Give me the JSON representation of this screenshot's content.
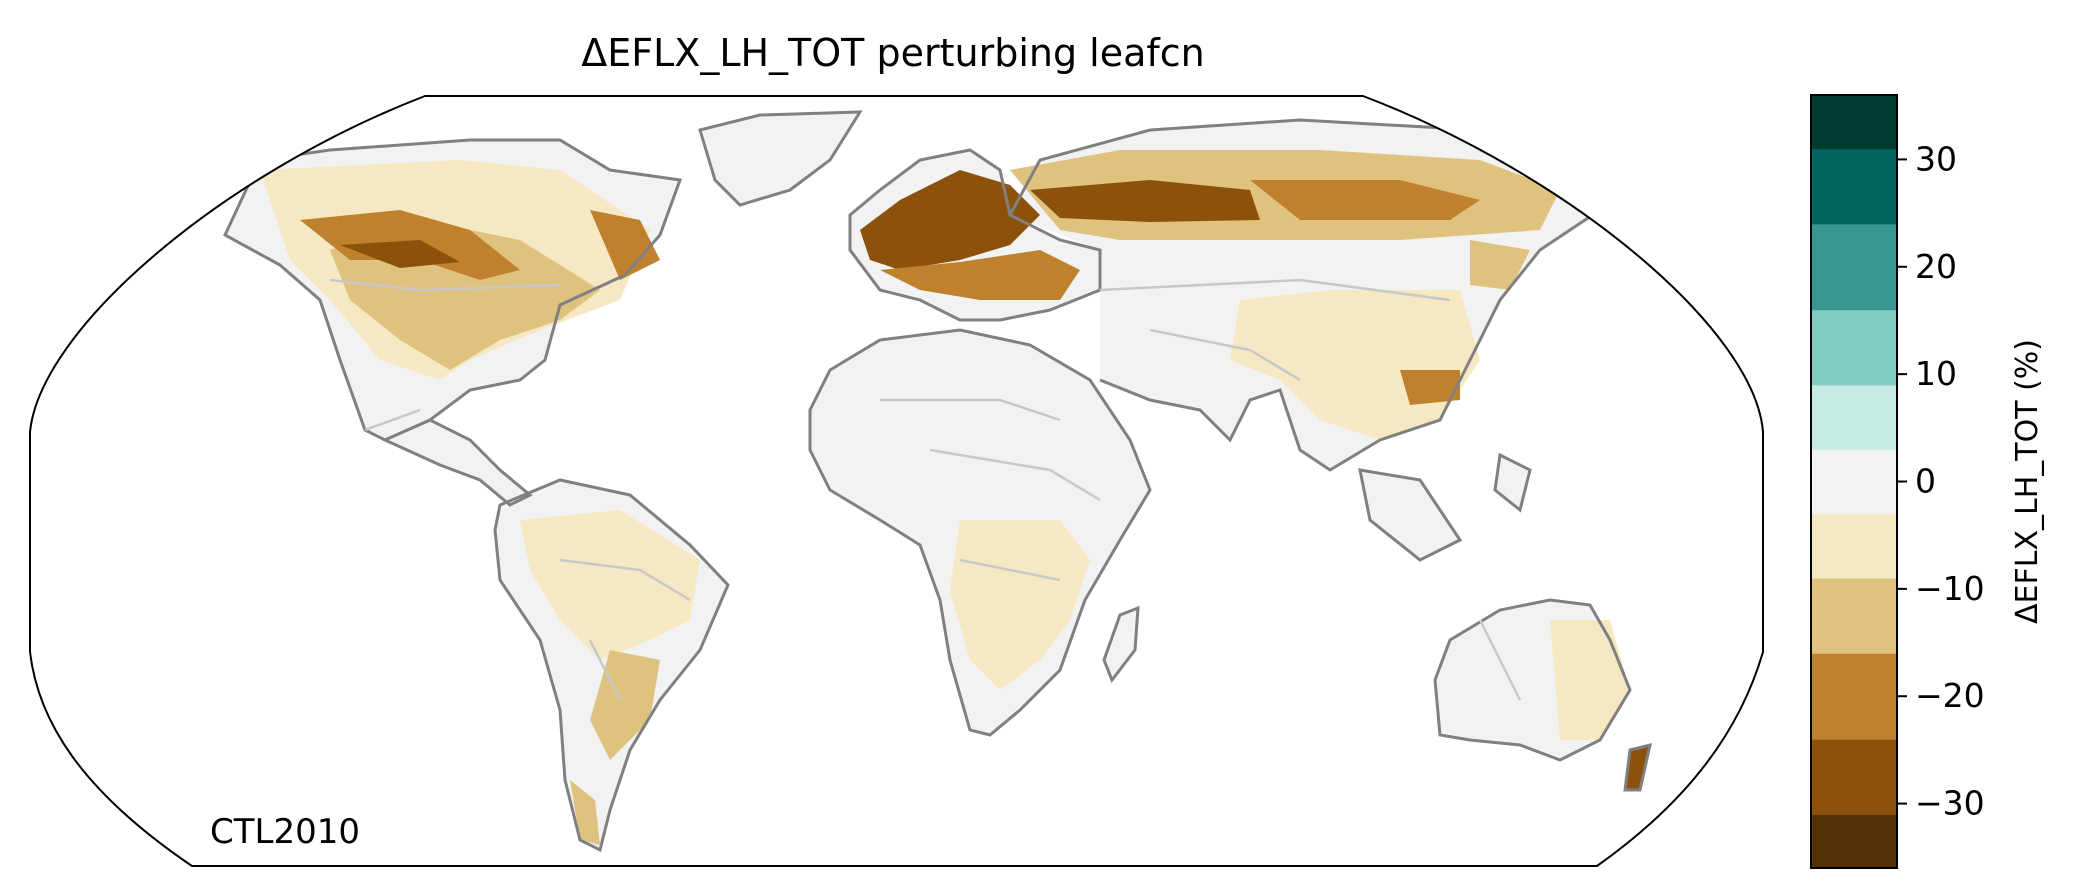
{
  "title": "ΔEFLX_LH_TOT perturbing leafcn",
  "run_label": "CTL2010",
  "colorbar": {
    "label": "ΔEFLX_LH_TOT (%)",
    "ticks": [
      "30",
      "20",
      "10",
      "0",
      "−10",
      "−20",
      "−30"
    ],
    "tick_values": [
      30,
      20,
      10,
      0,
      -10,
      -20,
      -30
    ],
    "range": [
      -36,
      36
    ],
    "bins": [
      {
        "from": -36,
        "to": -31,
        "color": "#543005"
      },
      {
        "from": -31,
        "to": -24,
        "color": "#8c510a"
      },
      {
        "from": -24,
        "to": -16,
        "color": "#bf812d"
      },
      {
        "from": -16,
        "to": -9,
        "color": "#dfc27d"
      },
      {
        "from": -9,
        "to": -3,
        "color": "#f6e8c3"
      },
      {
        "from": -3,
        "to": 3,
        "color": "#f2f2f2"
      },
      {
        "from": 3,
        "to": 9,
        "color": "#c7eae5"
      },
      {
        "from": 9,
        "to": 16,
        "color": "#80cdc1"
      },
      {
        "from": 16,
        "to": 24,
        "color": "#35978f"
      },
      {
        "from": 24,
        "to": 31,
        "color": "#01665e"
      },
      {
        "from": 31,
        "to": 36,
        "color": "#003c30"
      }
    ]
  },
  "map": {
    "projection": "Robinson",
    "coastline_color": "#808080",
    "border_color": "#c8c8c8"
  }
}
